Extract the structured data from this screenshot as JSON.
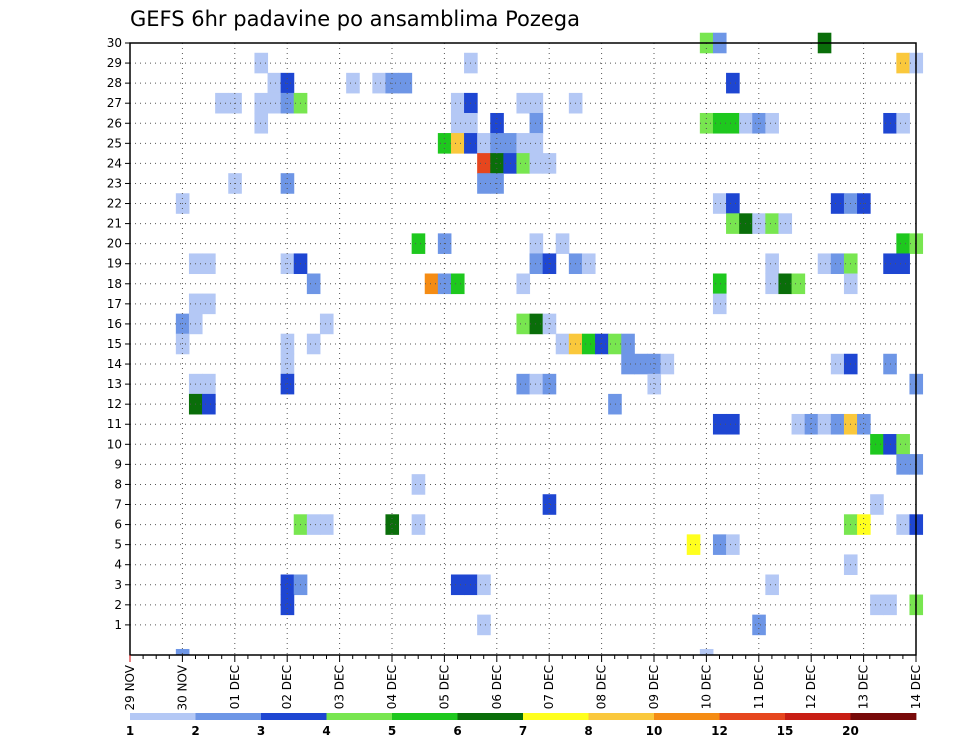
{
  "chart_data": {
    "type": "heatmap",
    "title": "GEFS 6hr padavine po ansamblima Pozega",
    "x_labels": [
      "29 NOV",
      "30 NOV",
      "01 DEC",
      "02 DEC",
      "03 DEC",
      "04 DEC",
      "05 DEC",
      "06 DEC",
      "07 DEC",
      "08 DEC",
      "09 DEC",
      "10 DEC",
      "11 DEC",
      "12 DEC",
      "13 DEC",
      "14 DEC"
    ],
    "y_labels": [
      "1",
      "2",
      "3",
      "4",
      "5",
      "6",
      "7",
      "8",
      "9",
      "10",
      "11",
      "12",
      "13",
      "14",
      "15",
      "16",
      "17",
      "18",
      "19",
      "20",
      "21",
      "22",
      "23",
      "24",
      "25",
      "26",
      "27",
      "28",
      "29",
      "30"
    ],
    "x_range_steps": [
      0,
      60
    ],
    "steps_per_day": 4,
    "grid": true,
    "colorbar": {
      "labels": [
        "1",
        "2",
        "3",
        "4",
        "5",
        "6",
        "7",
        "8",
        "10",
        "12",
        "15",
        "20"
      ],
      "colors": [
        "#b4c8f5",
        "#6e96e6",
        "#1e46d2",
        "#78e650",
        "#1ec81e",
        "#0a6e0a",
        "#ffff1e",
        "#fac83c",
        "#f58c14",
        "#e6461e",
        "#c81e14",
        "#780a0a"
      ]
    },
    "cells": [
      [
        44,
        30,
        3
      ],
      [
        45,
        30,
        1
      ],
      [
        53,
        30,
        5
      ],
      [
        10,
        29,
        0
      ],
      [
        26,
        29,
        0
      ],
      [
        59,
        29,
        7
      ],
      [
        60,
        29,
        0
      ],
      [
        11,
        28,
        0
      ],
      [
        12,
        28,
        2
      ],
      [
        17,
        28,
        0
      ],
      [
        19,
        28,
        0
      ],
      [
        20,
        28,
        1
      ],
      [
        21,
        28,
        1
      ],
      [
        46,
        28,
        2
      ],
      [
        7,
        27,
        0
      ],
      [
        8,
        27,
        0
      ],
      [
        10,
        27,
        0
      ],
      [
        11,
        27,
        0
      ],
      [
        12,
        27,
        1
      ],
      [
        13,
        27,
        3
      ],
      [
        25,
        27,
        0
      ],
      [
        26,
        27,
        2
      ],
      [
        30,
        27,
        0
      ],
      [
        31,
        27,
        0
      ],
      [
        34,
        27,
        0
      ],
      [
        10,
        26,
        0
      ],
      [
        25,
        26,
        0
      ],
      [
        26,
        26,
        0
      ],
      [
        28,
        26,
        2
      ],
      [
        31,
        26,
        1
      ],
      [
        44,
        26,
        3
      ],
      [
        45,
        26,
        4
      ],
      [
        46,
        26,
        4
      ],
      [
        47,
        26,
        0
      ],
      [
        48,
        26,
        1
      ],
      [
        49,
        26,
        0
      ],
      [
        58,
        26,
        2
      ],
      [
        59,
        26,
        0
      ],
      [
        24,
        25,
        4
      ],
      [
        25,
        25,
        7
      ],
      [
        26,
        25,
        2
      ],
      [
        27,
        25,
        0
      ],
      [
        28,
        25,
        1
      ],
      [
        29,
        25,
        1
      ],
      [
        30,
        25,
        0
      ],
      [
        31,
        25,
        0
      ],
      [
        27,
        24,
        9
      ],
      [
        28,
        24,
        5
      ],
      [
        29,
        24,
        2
      ],
      [
        30,
        24,
        3
      ],
      [
        31,
        24,
        0
      ],
      [
        32,
        24,
        0
      ],
      [
        8,
        23,
        0
      ],
      [
        12,
        23,
        1
      ],
      [
        27,
        23,
        1
      ],
      [
        28,
        23,
        1
      ],
      [
        4,
        22,
        0
      ],
      [
        45,
        22,
        0
      ],
      [
        46,
        22,
        2
      ],
      [
        54,
        22,
        2
      ],
      [
        55,
        22,
        1
      ],
      [
        56,
        22,
        2
      ],
      [
        46,
        21,
        3
      ],
      [
        47,
        21,
        5
      ],
      [
        48,
        21,
        0
      ],
      [
        49,
        21,
        3
      ],
      [
        50,
        21,
        0
      ],
      [
        22,
        20,
        4
      ],
      [
        24,
        20,
        1
      ],
      [
        31,
        20,
        0
      ],
      [
        33,
        20,
        0
      ],
      [
        59,
        20,
        4
      ],
      [
        60,
        20,
        3
      ],
      [
        5,
        19,
        0
      ],
      [
        6,
        19,
        0
      ],
      [
        12,
        19,
        0
      ],
      [
        13,
        19,
        2
      ],
      [
        31,
        19,
        1
      ],
      [
        32,
        19,
        2
      ],
      [
        34,
        19,
        1
      ],
      [
        35,
        19,
        0
      ],
      [
        49,
        19,
        0
      ],
      [
        53,
        19,
        0
      ],
      [
        54,
        19,
        1
      ],
      [
        55,
        19,
        3
      ],
      [
        58,
        19,
        2
      ],
      [
        59,
        19,
        2
      ],
      [
        14,
        18,
        1
      ],
      [
        23,
        18,
        8
      ],
      [
        24,
        18,
        1
      ],
      [
        25,
        18,
        4
      ],
      [
        30,
        18,
        0
      ],
      [
        45,
        18,
        4
      ],
      [
        49,
        18,
        0
      ],
      [
        50,
        18,
        5
      ],
      [
        51,
        18,
        3
      ],
      [
        55,
        18,
        0
      ],
      [
        5,
        17,
        0
      ],
      [
        6,
        17,
        0
      ],
      [
        45,
        17,
        0
      ],
      [
        4,
        16,
        1
      ],
      [
        5,
        16,
        0
      ],
      [
        15,
        16,
        0
      ],
      [
        30,
        16,
        3
      ],
      [
        31,
        16,
        5
      ],
      [
        32,
        16,
        0
      ],
      [
        4,
        15,
        0
      ],
      [
        12,
        15,
        0
      ],
      [
        14,
        15,
        0
      ],
      [
        33,
        15,
        0
      ],
      [
        34,
        15,
        7
      ],
      [
        35,
        15,
        4
      ],
      [
        36,
        15,
        2
      ],
      [
        37,
        15,
        3
      ],
      [
        38,
        15,
        1
      ],
      [
        12,
        14,
        0
      ],
      [
        38,
        14,
        1
      ],
      [
        39,
        14,
        1
      ],
      [
        40,
        14,
        1
      ],
      [
        41,
        14,
        0
      ],
      [
        54,
        14,
        0
      ],
      [
        55,
        14,
        2
      ],
      [
        58,
        14,
        1
      ],
      [
        5,
        13,
        0
      ],
      [
        6,
        13,
        0
      ],
      [
        12,
        13,
        2
      ],
      [
        30,
        13,
        1
      ],
      [
        31,
        13,
        0
      ],
      [
        32,
        13,
        1
      ],
      [
        40,
        13,
        0
      ],
      [
        60,
        13,
        1
      ],
      [
        5,
        12,
        5
      ],
      [
        6,
        12,
        2
      ],
      [
        37,
        12,
        1
      ],
      [
        45,
        11,
        2
      ],
      [
        46,
        11,
        2
      ],
      [
        51,
        11,
        0
      ],
      [
        52,
        11,
        1
      ],
      [
        53,
        11,
        0
      ],
      [
        54,
        11,
        1
      ],
      [
        55,
        11,
        7
      ],
      [
        56,
        11,
        1
      ],
      [
        57,
        10,
        4
      ],
      [
        58,
        10,
        2
      ],
      [
        59,
        10,
        3
      ],
      [
        59,
        9,
        1
      ],
      [
        60,
        9,
        1
      ],
      [
        22,
        8,
        0
      ],
      [
        32,
        7,
        2
      ],
      [
        57,
        7,
        0
      ],
      [
        13,
        6,
        3
      ],
      [
        14,
        6,
        0
      ],
      [
        15,
        6,
        0
      ],
      [
        20,
        6,
        5
      ],
      [
        22,
        6,
        0
      ],
      [
        55,
        6,
        3
      ],
      [
        56,
        6,
        6
      ],
      [
        59,
        6,
        0
      ],
      [
        60,
        6,
        2
      ],
      [
        43,
        5,
        6
      ],
      [
        45,
        5,
        1
      ],
      [
        46,
        5,
        0
      ],
      [
        55,
        4,
        0
      ],
      [
        12,
        3,
        2
      ],
      [
        13,
        3,
        1
      ],
      [
        25,
        3,
        2
      ],
      [
        26,
        3,
        2
      ],
      [
        27,
        3,
        0
      ],
      [
        49,
        3,
        0
      ],
      [
        12,
        2,
        2
      ],
      [
        57,
        2,
        0
      ],
      [
        58,
        2,
        0
      ],
      [
        60,
        2,
        3
      ],
      [
        27,
        1,
        0
      ],
      [
        48,
        1,
        1
      ],
      [
        4,
        0,
        1
      ],
      [
        44,
        0,
        0
      ]
    ]
  }
}
